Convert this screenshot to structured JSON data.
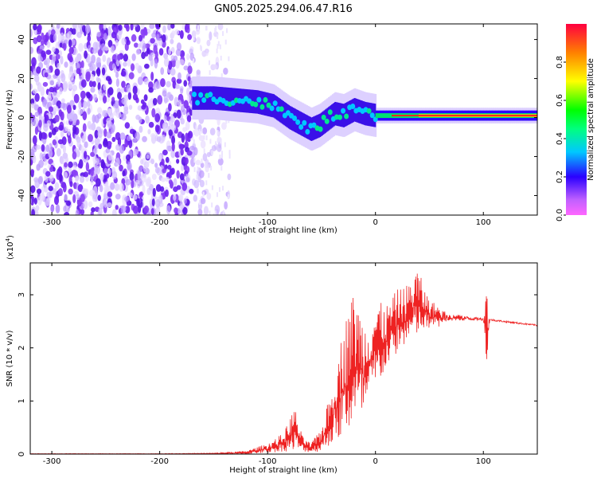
{
  "title": "GN05.2025.294.06.47.R16",
  "colors": {
    "snr_line": "#ee2222",
    "scatter_dense": "#6a1ef0",
    "axis": "#000000"
  },
  "chart_data": [
    {
      "type": "heatmap",
      "name": "spectrogram",
      "xlabel": "Height of straight line (km)",
      "ylabel": "Frequency (Hz)",
      "xlim": [
        -320,
        150
      ],
      "ylim": [
        -50,
        48
      ],
      "xticks": [
        -300,
        -200,
        -100,
        0,
        100
      ],
      "yticks": [
        -40,
        -20,
        0,
        20,
        40
      ],
      "xtick_labels": [
        "-300",
        "-200",
        "-100",
        "0",
        "100"
      ],
      "ytick_labels": [
        "-40",
        "-20",
        "0",
        "20",
        "40"
      ],
      "colorbar": {
        "label": "Normalized spectral amplitude",
        "range": [
          0,
          1
        ],
        "ticks": [
          0,
          0.2,
          0.4,
          0.6,
          0.8
        ],
        "tick_labels": [
          "0.0",
          "0.2",
          "0.4",
          "0.6",
          "0.8"
        ]
      },
      "noise_region_x": [
        -320,
        -170
      ],
      "ridge_line": [
        {
          "x": -170,
          "y": 10
        },
        {
          "x": -150,
          "y": 10
        },
        {
          "x": -130,
          "y": 9
        },
        {
          "x": -110,
          "y": 8
        },
        {
          "x": -95,
          "y": 6
        },
        {
          "x": -80,
          "y": 0
        },
        {
          "x": -70,
          "y": -3
        },
        {
          "x": -60,
          "y": -6
        },
        {
          "x": -52,
          "y": -4
        },
        {
          "x": -45,
          "y": -1
        },
        {
          "x": -38,
          "y": 2
        },
        {
          "x": -30,
          "y": 1
        },
        {
          "x": -20,
          "y": 4
        },
        {
          "x": -10,
          "y": 2
        },
        {
          "x": 0,
          "y": 1
        },
        {
          "x": 50,
          "y": 1
        },
        {
          "x": 150,
          "y": 1
        }
      ]
    },
    {
      "type": "line",
      "name": "snr",
      "xlabel": "Height of straight line (km)",
      "ylabel": "SNR (10 * v/v)",
      "multiplier_label": "(x10",
      "multiplier_exp": "4",
      "multiplier_close": ")",
      "xlim": [
        -320,
        150
      ],
      "ylim": [
        0,
        3.6
      ],
      "xticks": [
        -300,
        -200,
        -100,
        0,
        100
      ],
      "yticks": [
        0,
        1,
        2,
        3
      ],
      "xtick_labels": [
        "-300",
        "-200",
        "-100",
        "0",
        "100"
      ],
      "ytick_labels": [
        "0",
        "1",
        "2",
        "3"
      ],
      "envelope": [
        {
          "x": -320,
          "lo": 0.0,
          "hi": 0.01
        },
        {
          "x": -200,
          "lo": 0.0,
          "hi": 0.01
        },
        {
          "x": -150,
          "lo": 0.0,
          "hi": 0.02
        },
        {
          "x": -120,
          "lo": 0.0,
          "hi": 0.06
        },
        {
          "x": -100,
          "lo": 0.02,
          "hi": 0.2
        },
        {
          "x": -85,
          "lo": 0.05,
          "hi": 0.4
        },
        {
          "x": -75,
          "lo": 0.05,
          "hi": 0.9
        },
        {
          "x": -68,
          "lo": 0.05,
          "hi": 0.35
        },
        {
          "x": -60,
          "lo": 0.03,
          "hi": 0.2
        },
        {
          "x": -50,
          "lo": 0.05,
          "hi": 0.5
        },
        {
          "x": -40,
          "lo": 0.2,
          "hi": 1.3
        },
        {
          "x": -30,
          "lo": 0.3,
          "hi": 2.4
        },
        {
          "x": -20,
          "lo": 0.5,
          "hi": 3.1
        },
        {
          "x": -10,
          "lo": 0.7,
          "hi": 2.5
        },
        {
          "x": 0,
          "lo": 1.2,
          "hi": 2.9
        },
        {
          "x": 10,
          "lo": 1.6,
          "hi": 2.8
        },
        {
          "x": 20,
          "lo": 1.9,
          "hi": 3.1
        },
        {
          "x": 30,
          "lo": 2.1,
          "hi": 3.2
        },
        {
          "x": 38,
          "lo": 2.2,
          "hi": 3.55
        },
        {
          "x": 50,
          "lo": 2.35,
          "hi": 2.9
        },
        {
          "x": 70,
          "lo": 2.45,
          "hi": 2.7
        },
        {
          "x": 90,
          "lo": 2.5,
          "hi": 2.6
        },
        {
          "x": 100,
          "lo": 2.5,
          "hi": 2.58
        },
        {
          "x": 103,
          "lo": 1.75,
          "hi": 3.0
        },
        {
          "x": 106,
          "lo": 2.5,
          "hi": 2.56
        },
        {
          "x": 120,
          "lo": 2.47,
          "hi": 2.52
        },
        {
          "x": 150,
          "lo": 2.4,
          "hi": 2.45
        }
      ]
    }
  ]
}
